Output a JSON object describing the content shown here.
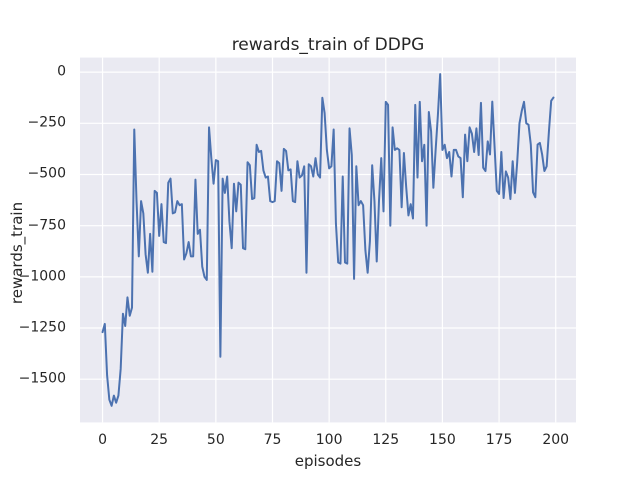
{
  "chart_data": {
    "type": "line",
    "title": "rewards_train of DDPG",
    "xlabel": "episodes",
    "ylabel": "rewards_train",
    "x_start": 0,
    "x_step": 1,
    "values": [
      -1270,
      -1230,
      -1480,
      -1600,
      -1630,
      -1580,
      -1615,
      -1580,
      -1450,
      -1180,
      -1240,
      -1100,
      -1190,
      -1150,
      -280,
      -630,
      -900,
      -630,
      -690,
      -890,
      -980,
      -790,
      -975,
      -580,
      -590,
      -800,
      -645,
      -830,
      -835,
      -540,
      -520,
      -690,
      -685,
      -630,
      -650,
      -645,
      -915,
      -885,
      -830,
      -900,
      -900,
      -525,
      -790,
      -770,
      -950,
      -1000,
      -1015,
      -270,
      -420,
      -545,
      -430,
      -435,
      -1390,
      -520,
      -590,
      -510,
      -730,
      -860,
      -545,
      -680,
      -540,
      -550,
      -860,
      -865,
      -440,
      -455,
      -620,
      -615,
      -355,
      -390,
      -385,
      -480,
      -515,
      -510,
      -630,
      -635,
      -630,
      -435,
      -445,
      -580,
      -375,
      -385,
      -480,
      -475,
      -630,
      -635,
      -435,
      -515,
      -505,
      -460,
      -980,
      -450,
      -460,
      -510,
      -420,
      -500,
      -515,
      -125,
      -200,
      -380,
      -470,
      -460,
      -280,
      -740,
      -930,
      -935,
      -510,
      -930,
      -935,
      -275,
      -405,
      -1010,
      -460,
      -650,
      -630,
      -650,
      -870,
      -980,
      -825,
      -455,
      -630,
      -925,
      -630,
      -420,
      -680,
      -145,
      -160,
      -750,
      -270,
      -380,
      -372,
      -380,
      -660,
      -395,
      -560,
      -700,
      -645,
      -715,
      -160,
      -515,
      -145,
      -435,
      -355,
      -750,
      -195,
      -290,
      -565,
      -380,
      -210,
      -10,
      -380,
      -355,
      -420,
      -390,
      -510,
      -380,
      -380,
      -412,
      -420,
      -611,
      -305,
      -435,
      -270,
      -300,
      -390,
      -275,
      -405,
      -150,
      -467,
      -483,
      -338,
      -402,
      -144,
      -362,
      -580,
      -595,
      -390,
      -615,
      -485,
      -515,
      -620,
      -435,
      -590,
      -440,
      -250,
      -190,
      -145,
      -250,
      -257,
      -354,
      -587,
      -611,
      -354,
      -346,
      -402,
      -483,
      -460,
      -290,
      -140,
      -124
    ],
    "xlim": [
      -9.95,
      208.95
    ],
    "ylim": [
      -1711,
      71
    ],
    "xticks": [
      0,
      25,
      50,
      75,
      100,
      125,
      150,
      175,
      200
    ],
    "xtick_labels": [
      "0",
      "25",
      "50",
      "75",
      "100",
      "125",
      "150",
      "175",
      "200"
    ],
    "yticks": [
      0,
      -250,
      -500,
      -750,
      -1000,
      -1250,
      -1500
    ],
    "ytick_labels": [
      "0",
      "−250",
      "−500",
      "−750",
      "−1000",
      "−1250",
      "−1500"
    ],
    "grid": true,
    "legend": "none",
    "colors": {
      "line": "#4C72B0",
      "axes_background": "#EAEAF2",
      "grid": "#FFFFFF",
      "text": "#262626",
      "figure_background": "#FFFFFF"
    }
  }
}
